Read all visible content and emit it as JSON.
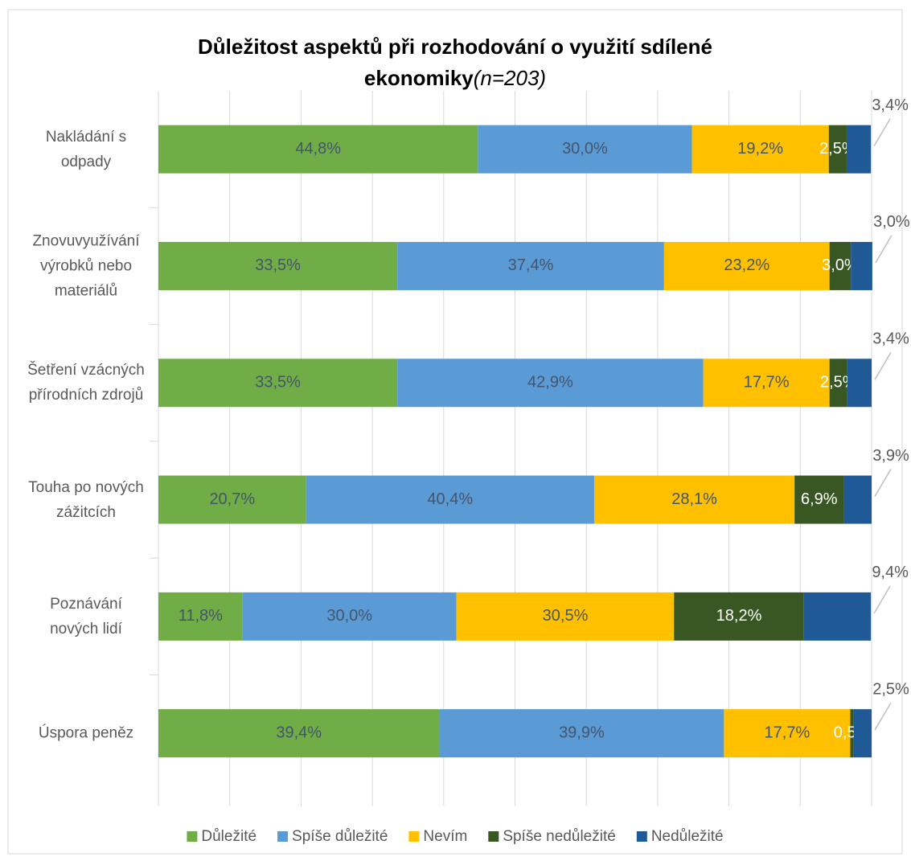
{
  "chart_data": {
    "type": "stacked-bar-horizontal",
    "title": "Důležitost aspektů při rozhodování o využití sdílené ekonomiky",
    "subtitle": "(n=203)",
    "categories": [
      "Nakládání s odpady",
      "Znovuvyužívání výrobků nebo materiálů",
      "Šetření vzácných přírodních zdrojů",
      "Touha po nových zážitcích",
      "Poznávání nových lidí",
      "Úspora peněz"
    ],
    "series": [
      {
        "name": "Důležité",
        "color": "#70ad47",
        "values": [
          44.8,
          33.5,
          33.5,
          20.7,
          11.8,
          39.4
        ],
        "value_labels": [
          "44,8%",
          "33,5%",
          "33,5%",
          "20,7%",
          "11,8%",
          "39,4%"
        ]
      },
      {
        "name": "Spíše důležité",
        "color": "#5b9bd5",
        "values": [
          30.0,
          37.4,
          42.9,
          40.4,
          30.0,
          39.9
        ],
        "value_labels": [
          "30,0%",
          "37,4%",
          "42,9%",
          "40,4%",
          "30,0%",
          "39,9%"
        ]
      },
      {
        "name": "Nevím",
        "color": "#ffc000",
        "values": [
          19.2,
          23.2,
          17.7,
          28.1,
          30.5,
          17.7
        ],
        "value_labels": [
          "19,2%",
          "23,2%",
          "17,7%",
          "28,1%",
          "30,5%",
          "17,7%"
        ]
      },
      {
        "name": "Spíše nedůležité",
        "color": "#385723",
        "values": [
          2.5,
          3.0,
          2.5,
          6.9,
          18.2,
          0.5
        ],
        "value_labels": [
          "2,5%",
          "3,0%",
          "2,5%",
          "6,9%",
          "18,2%",
          "0,5%"
        ]
      },
      {
        "name": "Nedůležité",
        "color": "#1f5a96",
        "values": [
          3.4,
          3.0,
          3.4,
          3.9,
          9.4,
          2.5
        ],
        "value_labels": [
          "3,4%",
          "3,0%",
          "3,4%",
          "3,9%",
          "9,4%",
          "2,5%"
        ]
      }
    ],
    "xlim": [
      0,
      100
    ],
    "xticks": [
      0,
      10,
      20,
      30,
      40,
      50,
      60,
      70,
      80,
      90,
      100
    ],
    "grid": true,
    "legend": "bottom"
  }
}
